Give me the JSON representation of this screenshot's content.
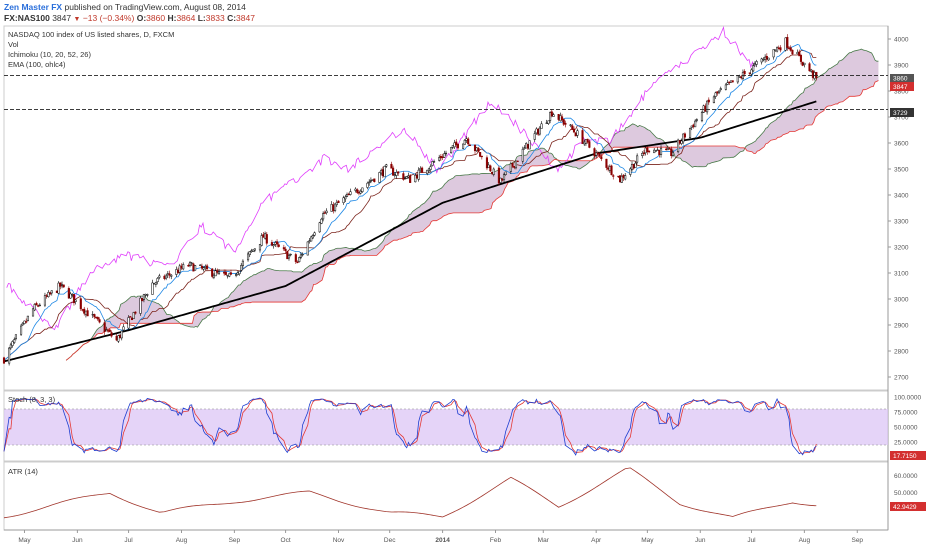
{
  "header": {
    "publisher": "Zen Master FX",
    "published_text": "published on TradingView.com, August 08, 2014",
    "symbol": "FX:NAS100",
    "last": "3847",
    "change": "−13 (−0.34%)",
    "open_label": "O:",
    "open": "3860",
    "high_label": "H:",
    "high": "3864",
    "low_label": "L:",
    "low": "3833",
    "close_label": "C:",
    "close": "3847"
  },
  "panes": {
    "main": {
      "title": "NASDAQ 100 index of US listed shares, D, FXCM",
      "indicators": [
        "Vol",
        "Ichimoku (10, 20, 52, 26)",
        "EMA (100, ohlc4)"
      ],
      "price_labels": {
        "ohlc_box": "3860",
        "last_box": "3847",
        "line_box": "3729"
      }
    },
    "stoch": {
      "title": "Stoch (8, 3, 3)",
      "last_box": "17.7150"
    },
    "atr": {
      "title": "ATR (14)",
      "last_box": "42.9429"
    }
  },
  "colors": {
    "candle_up": "#000000",
    "candle_down": "#8b0000",
    "ema": "#000000",
    "chikou": "#e040fb",
    "tenkan": "#1e88e5",
    "kijun": "#7b241c",
    "cloud_bull": "#c9ec9a",
    "cloud_bear": "#d7c0d8",
    "span_a": "#4a7a4a",
    "span_b": "#e53935",
    "stoch_band": "#dcc6f5",
    "stoch_k": "#1f3fd1",
    "stoch_d": "#e53935",
    "atr": "#a0342a"
  },
  "chart_data": {
    "type": "line",
    "subtype": "candlestick",
    "x_tick_labels": [
      "May",
      "Jun",
      "Jul",
      "Aug",
      "Sep",
      "Oct",
      "Nov",
      "Dec",
      "2014",
      "Feb",
      "Mar",
      "Apr",
      "May",
      "Jun",
      "Jul",
      "Aug",
      "Sep"
    ],
    "y_axis": {
      "ticks": [
        "4000",
        "3900",
        "3800",
        "3700",
        "3600",
        "3500",
        "3400",
        "3300",
        "3200",
        "3100",
        "3000",
        "2900",
        "2800",
        "2700"
      ],
      "range": [
        2650,
        4050
      ]
    },
    "price_path": [
      [
        "2013-04-19",
        2770
      ],
      [
        "2013-05-06",
        2960
      ],
      [
        "2013-05-22",
        3050
      ],
      [
        "2013-06-05",
        2960
      ],
      [
        "2013-06-24",
        2840
      ],
      [
        "2013-07-15",
        3060
      ],
      [
        "2013-08-05",
        3130
      ],
      [
        "2013-08-30",
        3080
      ],
      [
        "2013-09-18",
        3240
      ],
      [
        "2013-10-08",
        3140
      ],
      [
        "2013-10-22",
        3320
      ],
      [
        "2013-11-29",
        3500
      ],
      [
        "2013-12-13",
        3460
      ],
      [
        "2014-01-15",
        3620
      ],
      [
        "2014-02-04",
        3450
      ],
      [
        "2014-03-06",
        3720
      ],
      [
        "2014-03-20",
        3640
      ],
      [
        "2014-04-15",
        3460
      ],
      [
        "2014-05-01",
        3580
      ],
      [
        "2014-05-15",
        3560
      ],
      [
        "2014-06-09",
        3780
      ],
      [
        "2014-06-30",
        3880
      ],
      [
        "2014-07-21",
        3990
      ],
      [
        "2014-08-08",
        3847
      ]
    ],
    "ema_path": [
      [
        "2013-04-19",
        2760
      ],
      [
        "2013-07-01",
        2880
      ],
      [
        "2013-10-01",
        3050
      ],
      [
        "2014-01-01",
        3370
      ],
      [
        "2014-04-01",
        3560
      ],
      [
        "2014-06-01",
        3620
      ],
      [
        "2014-08-08",
        3760
      ]
    ],
    "horizontal_lines": [
      3860,
      3729
    ],
    "stoch": {
      "y_ticks": [
        "100.0000",
        "75.0000",
        "50.0000",
        "25.0000"
      ],
      "range": [
        0,
        100
      ],
      "band": [
        20,
        80
      ],
      "last": 17.715
    },
    "atr": {
      "y_ticks": [
        "60.0000",
        "50.0000"
      ],
      "range": [
        28,
        68
      ],
      "path": [
        [
          "2013-04-19",
          36
        ],
        [
          "2013-06-20",
          50
        ],
        [
          "2013-07-20",
          38
        ],
        [
          "2013-09-01",
          45
        ],
        [
          "2013-10-15",
          50
        ],
        [
          "2013-12-01",
          38
        ],
        [
          "2014-01-01",
          36
        ],
        [
          "2014-02-10",
          58
        ],
        [
          "2014-03-10",
          42
        ],
        [
          "2014-04-20",
          64
        ],
        [
          "2014-05-20",
          44
        ],
        [
          "2014-06-20",
          35
        ],
        [
          "2014-07-25",
          45
        ],
        [
          "2014-08-08",
          43
        ]
      ],
      "last": 42.9429
    }
  }
}
